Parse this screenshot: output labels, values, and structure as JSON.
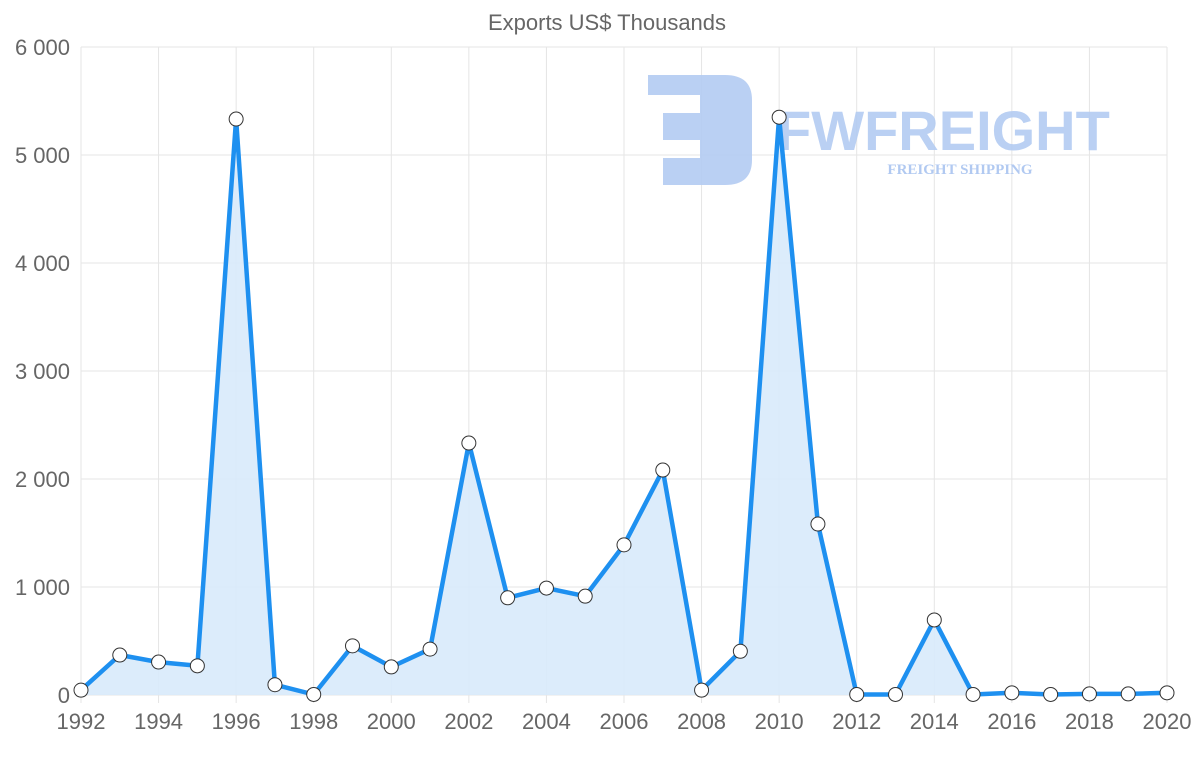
{
  "watermark": {
    "brand": "FWFREIGHT",
    "tagline": "FREIGHT SHIPPING"
  },
  "colors": {
    "line": "#1e90f0",
    "fill": "#d8eafb",
    "grid": "#e5e5e5",
    "watermark": "#a9c4f0"
  },
  "chart_data": {
    "type": "area",
    "title": "Exports US$ Thousands",
    "xlabel": "",
    "ylabel": "",
    "ylim": [
      0,
      6000
    ],
    "xlim": [
      1992,
      2020
    ],
    "yticks": [
      0,
      1000,
      2000,
      3000,
      4000,
      5000,
      6000
    ],
    "ytick_labels": [
      "0",
      "1 000",
      "2 000",
      "3 000",
      "4 000",
      "5 000",
      "6 000"
    ],
    "xtick_labels": [
      "1992",
      "1994",
      "1996",
      "1998",
      "2000",
      "2002",
      "2004",
      "2006",
      "2008",
      "2010",
      "2012",
      "2014",
      "2016",
      "2018",
      "2020"
    ],
    "grid": true,
    "x": [
      1992,
      1993,
      1994,
      1995,
      1996,
      1997,
      1998,
      1999,
      2000,
      2001,
      2002,
      2003,
      2004,
      2005,
      2006,
      2007,
      2008,
      2009,
      2010,
      2011,
      2012,
      2013,
      2014,
      2015,
      2016,
      2017,
      2018,
      2019,
      2020
    ],
    "values": [
      45,
      370,
      305,
      270,
      5333,
      95,
      5,
      455,
      260,
      425,
      2333,
      900,
      990,
      915,
      1390,
      2083,
      45,
      405,
      5350,
      1583,
      5,
      5,
      695,
      5,
      20,
      5,
      10,
      10,
      20
    ]
  }
}
